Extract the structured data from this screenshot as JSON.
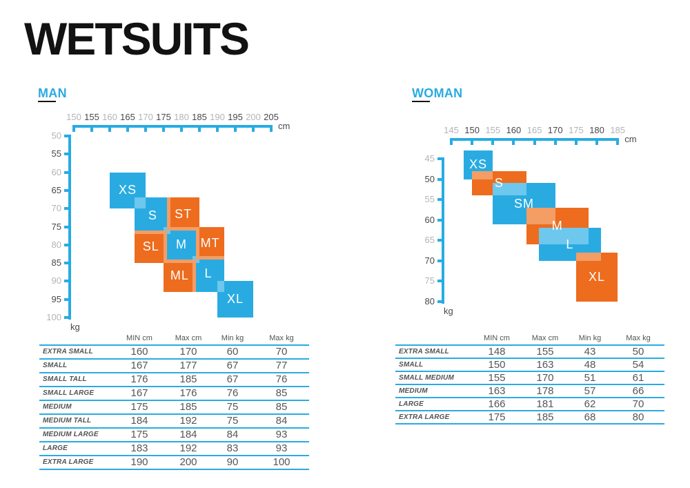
{
  "title": "WETSUITS",
  "colors": {
    "accent_blue": "#29ABE2",
    "accent_orange": "#ED6C1E",
    "overlap_blue": "#6EC7ED",
    "overlap_orange": "#F49D64",
    "tick_gray": "#B2B4B6",
    "tick_dark": "#47484C",
    "table_text": "#515256",
    "table_value_text": "#54555A",
    "title_color": "#121212"
  },
  "chart_data": [
    {
      "type": "area",
      "title": "MAN",
      "xlabel": "cm",
      "ylabel": "kg",
      "x_ticks": [
        150,
        155,
        160,
        165,
        170,
        175,
        180,
        185,
        190,
        195,
        200,
        205
      ],
      "y_ticks": [
        50,
        55,
        60,
        65,
        70,
        75,
        80,
        85,
        90,
        95,
        100
      ],
      "x_range": [
        150,
        205
      ],
      "y_range": [
        50,
        100
      ],
      "regions": [
        {
          "label": "XS",
          "cm": [
            160,
            170
          ],
          "kg": [
            60,
            70
          ],
          "color": "blue"
        },
        {
          "label": "S",
          "cm": [
            167,
            177
          ],
          "kg": [
            67,
            77
          ],
          "color": "blue"
        },
        {
          "label": "M",
          "cm": [
            175,
            185
          ],
          "kg": [
            75,
            85
          ],
          "color": "blue"
        },
        {
          "label": "L",
          "cm": [
            183,
            192
          ],
          "kg": [
            83,
            93
          ],
          "color": "blue"
        },
        {
          "label": "XL",
          "cm": [
            190,
            200
          ],
          "kg": [
            90,
            100
          ],
          "color": "blue"
        },
        {
          "label": "ST",
          "cm": [
            176,
            185
          ],
          "kg": [
            67,
            76
          ],
          "color": "orange"
        },
        {
          "label": "SL",
          "cm": [
            167,
            176
          ],
          "kg": [
            76,
            85
          ],
          "color": "orange"
        },
        {
          "label": "MT",
          "cm": [
            184,
            192
          ],
          "kg": [
            75,
            84
          ],
          "color": "orange"
        },
        {
          "label": "ML",
          "cm": [
            175,
            184
          ],
          "kg": [
            84,
            93
          ],
          "color": "orange"
        }
      ]
    },
    {
      "type": "area",
      "title": "WOMAN",
      "xlabel": "cm",
      "ylabel": "kg",
      "x_ticks": [
        145,
        150,
        155,
        160,
        165,
        170,
        175,
        180,
        185
      ],
      "y_ticks": [
        45,
        50,
        55,
        60,
        65,
        70,
        75,
        80
      ],
      "x_range": [
        145,
        185
      ],
      "y_range": [
        45,
        80
      ],
      "regions": [
        {
          "label": "XS",
          "cm": [
            148,
            155
          ],
          "kg": [
            43,
            50
          ],
          "color": "blue"
        },
        {
          "label": "S",
          "cm": [
            150,
            163
          ],
          "kg": [
            48,
            54
          ],
          "color": "orange"
        },
        {
          "label": "SM",
          "cm": [
            155,
            170
          ],
          "kg": [
            51,
            61
          ],
          "color": "blue"
        },
        {
          "label": "M",
          "cm": [
            163,
            178
          ],
          "kg": [
            57,
            66
          ],
          "color": "orange"
        },
        {
          "label": "L",
          "cm": [
            166,
            181
          ],
          "kg": [
            62,
            70
          ],
          "color": "blue"
        },
        {
          "label": "XL",
          "cm": [
            175,
            185
          ],
          "kg": [
            68,
            80
          ],
          "color": "orange"
        }
      ]
    }
  ],
  "tables": [
    {
      "for": "MAN",
      "headers": [
        "MIN cm",
        "Max cm",
        "Min kg",
        "Max kg"
      ],
      "rows": [
        {
          "label": "EXTRA SMALL",
          "values": [
            "160",
            "170",
            "60",
            "70"
          ]
        },
        {
          "label": "SMALL",
          "values": [
            "167",
            "177",
            "67",
            "77"
          ]
        },
        {
          "label": "SMALL TALL",
          "values": [
            "176",
            "185",
            "67",
            "76"
          ]
        },
        {
          "label": "SMALL LARGE",
          "values": [
            "167",
            "176",
            "76",
            "85"
          ]
        },
        {
          "label": "MEDIUM",
          "values": [
            "175",
            "185",
            "75",
            "85"
          ]
        },
        {
          "label": "MEDIUM TALL",
          "values": [
            "184",
            "192",
            "75",
            "84"
          ]
        },
        {
          "label": "MEDIUM LARGE",
          "values": [
            "175",
            "184",
            "84",
            "93"
          ]
        },
        {
          "label": "LARGE",
          "values": [
            "183",
            "192",
            "83",
            "93"
          ]
        },
        {
          "label": "EXTRA LARGE",
          "values": [
            "190",
            "200",
            "90",
            "100"
          ]
        }
      ]
    },
    {
      "for": "WOMAN",
      "headers": [
        "MIN cm",
        "Max cm",
        "Min kg",
        "Max kg"
      ],
      "rows": [
        {
          "label": "EXTRA SMALL",
          "values": [
            "148",
            "155",
            "43",
            "50"
          ]
        },
        {
          "label": "SMALL",
          "values": [
            "150",
            "163",
            "48",
            "54"
          ]
        },
        {
          "label": "SMALL MEDIUM",
          "values": [
            "155",
            "170",
            "51",
            "61"
          ]
        },
        {
          "label": "MEDIUM",
          "values": [
            "163",
            "178",
            "57",
            "66"
          ]
        },
        {
          "label": "LARGE",
          "values": [
            "166",
            "181",
            "62",
            "70"
          ]
        },
        {
          "label": "EXTRA LARGE",
          "values": [
            "175",
            "185",
            "68",
            "80"
          ]
        }
      ]
    }
  ]
}
